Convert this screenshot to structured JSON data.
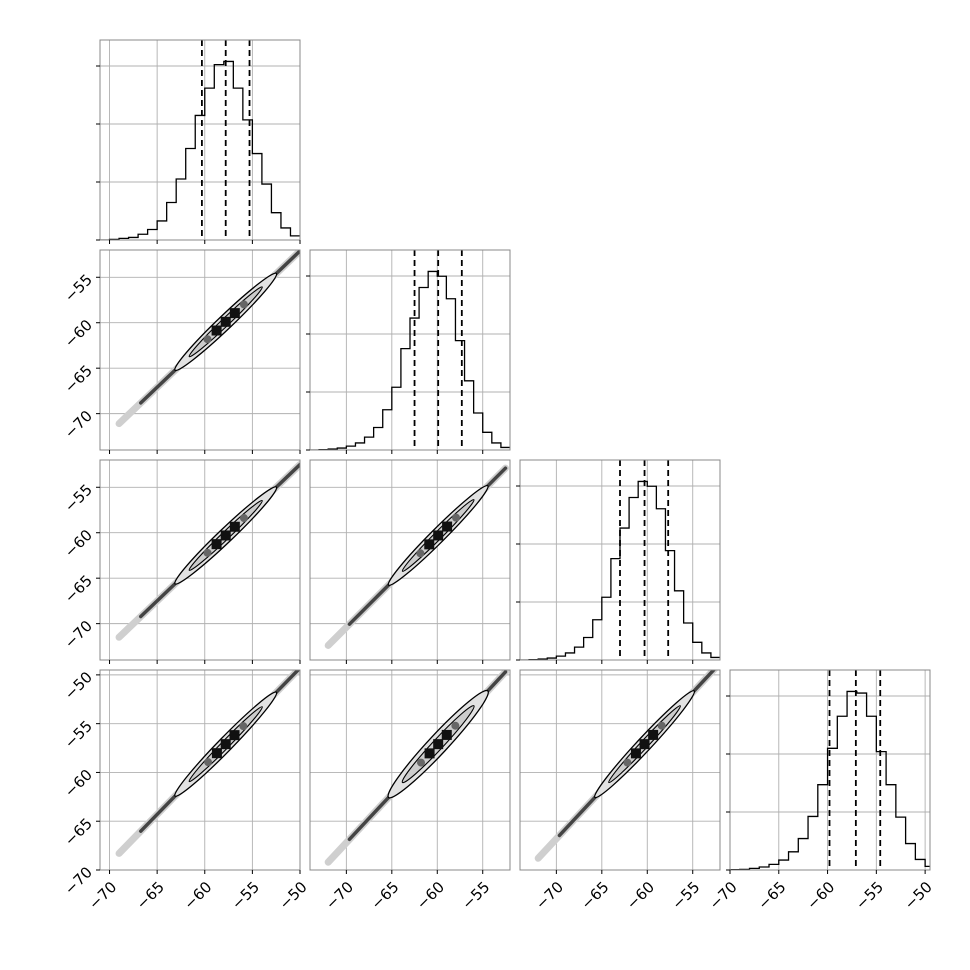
{
  "chart_data": {
    "type": "corner",
    "parameters": 4,
    "quantile_lines": [
      0.16,
      0.5,
      0.84
    ],
    "grid": true,
    "diagonal": [
      {
        "xlim": [
          -71,
          -50
        ],
        "bin_edges": [
          -71,
          -70,
          -69,
          -68,
          -67,
          -66,
          -65,
          -64,
          -63,
          -62,
          -61,
          -60,
          -59,
          -58,
          -57,
          -56,
          -55,
          -54,
          -53,
          -52,
          -51,
          -50
        ],
        "counts": [
          0,
          2,
          5,
          8,
          18,
          33,
          60,
          118,
          192,
          288,
          392,
          478,
          552,
          562,
          478,
          378,
          272,
          176,
          86,
          38,
          13
        ],
        "quantiles": [
          -60.3,
          -57.8,
          -55.3
        ],
        "ticks": [
          -70,
          -65,
          -60,
          -55,
          -50
        ]
      },
      {
        "xlim": [
          -74,
          -52
        ],
        "bin_edges": [
          -74,
          -73,
          -72,
          -71,
          -70,
          -69,
          -68,
          -67,
          -66,
          -65,
          -64,
          -63,
          -62,
          -61,
          -60,
          -59,
          -58,
          -57,
          -56,
          -55,
          -54,
          -53,
          -52
        ],
        "counts": [
          0,
          1,
          3,
          6,
          12,
          22,
          40,
          70,
          125,
          195,
          315,
          410,
          505,
          555,
          540,
          470,
          340,
          215,
          115,
          55,
          22,
          8
        ],
        "quantiles": [
          -62.5,
          -59.9,
          -57.3
        ],
        "ticks": [
          -70,
          -65,
          -60,
          -55
        ]
      },
      {
        "xlim": [
          -74,
          -52
        ],
        "bin_edges": [
          -74,
          -73,
          -72,
          -71,
          -70,
          -69,
          -68,
          -67,
          -66,
          -65,
          -64,
          -63,
          -62,
          -61,
          -60,
          -59,
          -58,
          -57,
          -56,
          -55,
          -54,
          -53,
          -52
        ],
        "counts": [
          0,
          1,
          3,
          6,
          12,
          22,
          40,
          70,
          125,
          195,
          315,
          410,
          505,
          555,
          540,
          470,
          340,
          215,
          115,
          55,
          22,
          8
        ],
        "quantiles": [
          -63.0,
          -60.3,
          -57.7
        ],
        "ticks": [
          -70,
          -65,
          -60,
          -55
        ]
      },
      {
        "xlim": [
          -70,
          -49.5
        ],
        "bin_edges": [
          -71,
          -70,
          -69,
          -68,
          -67,
          -66,
          -65,
          -64,
          -63,
          -62,
          -61,
          -60,
          -59,
          -58,
          -57,
          -56,
          -55,
          -54,
          -53,
          -52,
          -51,
          -50,
          -49
        ],
        "counts": [
          0,
          1,
          2,
          5,
          9,
          17,
          30,
          55,
          95,
          162,
          258,
          368,
          465,
          540,
          535,
          465,
          358,
          258,
          160,
          80,
          32,
          11
        ],
        "quantiles": [
          -59.8,
          -57.1,
          -54.6
        ],
        "ticks": [
          -70,
          -65,
          -60,
          -55,
          -50
        ]
      }
    ],
    "axis_ticks": [
      {
        "x": [
          "−70",
          "−65",
          "−60",
          "−55",
          "−50"
        ],
        "y": []
      },
      {
        "x": [
          "−70",
          "−65",
          "−60",
          "−55"
        ],
        "y": [
          "−55",
          "−60",
          "−65",
          "−70"
        ]
      },
      {
        "x": [
          "−70",
          "−65",
          "−60",
          "−55"
        ],
        "y": [
          "−55",
          "−60",
          "−65",
          "−70"
        ]
      },
      {
        "x": [
          "−70",
          "−65",
          "−60",
          "−55",
          "−50"
        ],
        "y": [
          "−50",
          "−55",
          "−60",
          "−65",
          "−70"
        ]
      }
    ],
    "pairs": [
      {
        "row": 1,
        "col": 0,
        "center": [
          -57.8,
          -59.9
        ],
        "spread": 2.5,
        "start": -69,
        "end": -50,
        "rho": 0.995
      },
      {
        "row": 2,
        "col": 0,
        "center": [
          -57.8,
          -60.3
        ],
        "spread": 2.5,
        "start": -69,
        "end": -50,
        "rho": 0.995
      },
      {
        "row": 2,
        "col": 1,
        "center": [
          -59.9,
          -60.3
        ],
        "spread": 2.6,
        "start": -72,
        "end": -52.5,
        "rho": 0.99
      },
      {
        "row": 3,
        "col": 0,
        "center": [
          -57.8,
          -57.1
        ],
        "spread": 2.5,
        "start": -69,
        "end": -50,
        "rho": 0.995
      },
      {
        "row": 3,
        "col": 1,
        "center": [
          -59.9,
          -57.1
        ],
        "spread": 2.6,
        "start": -72,
        "end": -52.5,
        "rho": 0.97
      },
      {
        "row": 3,
        "col": 2,
        "center": [
          -60.3,
          -57.1
        ],
        "spread": 2.6,
        "start": -72,
        "end": -52.5,
        "rho": 0.995
      }
    ],
    "colors": {
      "series": "#000000",
      "contour_fill": "#e2e2e2",
      "grid": "#b0b0b0"
    }
  }
}
